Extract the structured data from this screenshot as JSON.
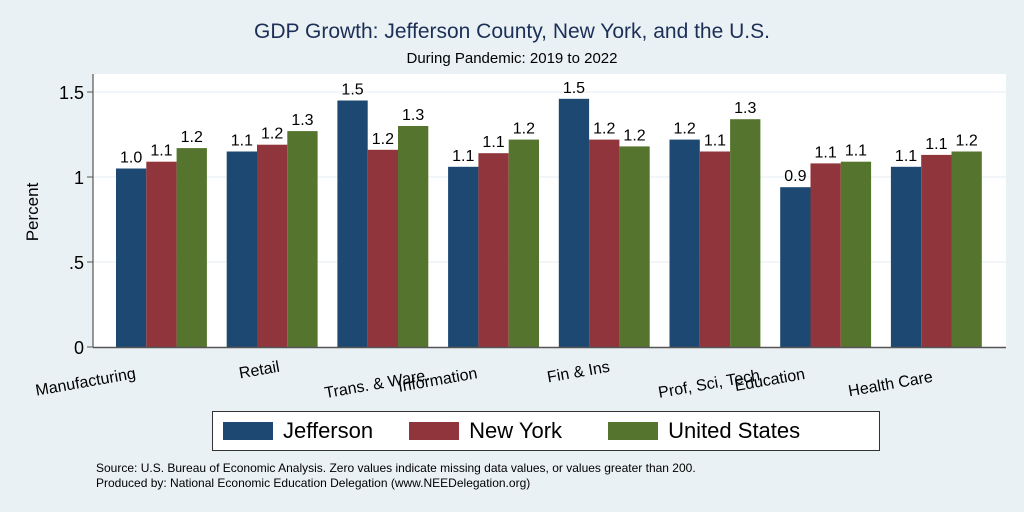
{
  "chart_data": {
    "type": "bar",
    "title": "GDP Growth: Jefferson County, New York, and the U.S.",
    "subtitle": "During Pandemic: 2019 to 2022",
    "xlabel": "",
    "ylabel": "Percent",
    "ylim": [
      0,
      1.6
    ],
    "yticks": [
      0,
      0.5,
      1,
      1.5
    ],
    "ytick_labels": [
      "0",
      ".5",
      "1",
      "1.5"
    ],
    "grid": true,
    "legend_position": "bottom",
    "categories": [
      "Manufacturing",
      "Retail",
      "Trans. & Ware.",
      "Information",
      "Fin & Ins",
      "Prof, Sci, Tech",
      "Education",
      "Health Care"
    ],
    "series": [
      {
        "name": "Jefferson",
        "color": "#1c4872",
        "values": [
          1.05,
          1.15,
          1.45,
          1.06,
          1.46,
          1.22,
          0.94,
          1.06
        ],
        "labels": [
          "1.0",
          "1.1",
          "1.5",
          "1.1",
          "1.5",
          "1.2",
          "0.9",
          "1.1"
        ]
      },
      {
        "name": "New York",
        "color": "#90353b",
        "values": [
          1.09,
          1.19,
          1.16,
          1.14,
          1.22,
          1.15,
          1.08,
          1.13
        ],
        "labels": [
          "1.1",
          "1.2",
          "1.2",
          "1.1",
          "1.2",
          "1.1",
          "1.1",
          "1.1"
        ]
      },
      {
        "name": "United States",
        "color": "#55752f",
        "values": [
          1.17,
          1.27,
          1.3,
          1.22,
          1.18,
          1.34,
          1.09,
          1.15
        ],
        "labels": [
          "1.2",
          "1.3",
          "1.3",
          "1.2",
          "1.2",
          "1.3",
          "1.1",
          "1.2"
        ]
      }
    ]
  },
  "notes": {
    "source": "Source: U.S. Bureau of Economic Analysis. Zero values indicate missing data values, or values greater than 200.",
    "produced_by": "Produced by: National Economic Education Delegation (www.NEEDelegation.org)"
  }
}
